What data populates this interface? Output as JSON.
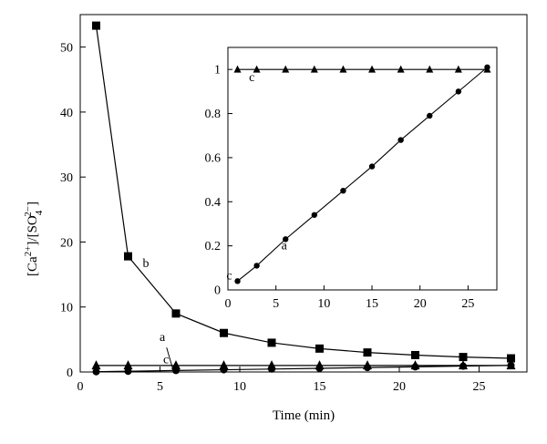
{
  "chart_data": [
    {
      "id": "main",
      "type": "line",
      "xlabel": "Time (min)",
      "ylabel": {
        "base": "[Ca",
        "sup1": "2+",
        "mid": "]/[SO",
        "sub": "4",
        "sup2": "2−",
        "end": "]"
      },
      "xlim": [
        0,
        28
      ],
      "ylim": [
        0,
        55
      ],
      "xticks": [
        0,
        5,
        10,
        15,
        20,
        25
      ],
      "yticks": [
        0,
        10,
        20,
        30,
        40,
        50
      ],
      "grid": false,
      "series": [
        {
          "label": "b",
          "marker": "square",
          "x": [
            1,
            3,
            6,
            9,
            12,
            15,
            18,
            21,
            24,
            27
          ],
          "y": [
            53.3,
            17.8,
            9.0,
            6.0,
            4.5,
            3.6,
            3.0,
            2.6,
            2.3,
            2.1
          ]
        },
        {
          "label": "a",
          "marker": "circle",
          "x": [
            1,
            3,
            6,
            9,
            12,
            15,
            18,
            21,
            24,
            27
          ],
          "y": [
            0.04,
            0.11,
            0.23,
            0.34,
            0.45,
            0.56,
            0.68,
            0.79,
            0.9,
            1.01
          ]
        },
        {
          "label": "c",
          "marker": "triangle",
          "x": [
            1,
            3,
            6,
            9,
            12,
            15,
            18,
            21,
            24,
            27
          ],
          "y": [
            1.0,
            1.0,
            1.0,
            1.0,
            1.0,
            1.0,
            1.0,
            1.0,
            1.0,
            1.0
          ]
        }
      ]
    },
    {
      "id": "inset",
      "type": "line",
      "xlabel": "",
      "ylabel": "",
      "xlim": [
        0,
        28
      ],
      "ylim": [
        0,
        1.1
      ],
      "xticks": [
        0,
        5,
        10,
        15,
        20,
        25
      ],
      "yticks": [
        0,
        0.2,
        0.4,
        0.6,
        0.8,
        1
      ],
      "ytick_labels": [
        "0",
        "0.2",
        "0.4",
        "0.6",
        "0.8",
        "1"
      ],
      "grid": false,
      "series": [
        {
          "label": "a",
          "marker": "circle",
          "x": [
            1,
            3,
            6,
            9,
            12,
            15,
            18,
            21,
            24,
            27
          ],
          "y": [
            0.04,
            0.11,
            0.23,
            0.34,
            0.45,
            0.56,
            0.68,
            0.79,
            0.9,
            1.01
          ]
        },
        {
          "label": "c",
          "marker": "triangle",
          "x": [
            1,
            3,
            6,
            9,
            12,
            15,
            18,
            21,
            24,
            27
          ],
          "y": [
            1.0,
            1.0,
            1.0,
            1.0,
            1.0,
            1.0,
            1.0,
            1.0,
            1.0,
            1.0
          ]
        }
      ],
      "point_labels": [
        "c",
        "a",
        "c"
      ]
    }
  ]
}
